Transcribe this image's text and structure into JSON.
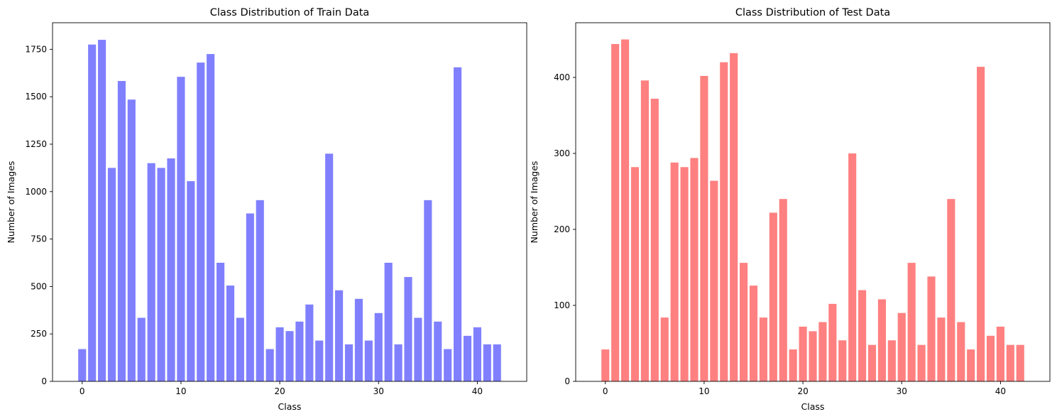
{
  "chart_data": [
    {
      "type": "bar",
      "title": "Class Distribution of Train Data",
      "xlabel": "Class",
      "ylabel": "Number of Images",
      "color": "#8080ff",
      "xlim": [
        -3,
        45
      ],
      "ylim": [
        0,
        1890
      ],
      "xticks": [
        0,
        10,
        20,
        30,
        40
      ],
      "yticks": [
        0,
        250,
        500,
        750,
        1000,
        1250,
        1500,
        1750
      ],
      "grid": false,
      "legend": "none",
      "categories": [
        0,
        1,
        2,
        3,
        4,
        5,
        6,
        7,
        8,
        9,
        10,
        11,
        12,
        13,
        14,
        15,
        16,
        17,
        18,
        19,
        20,
        21,
        22,
        23,
        24,
        25,
        26,
        27,
        28,
        29,
        30,
        31,
        32,
        33,
        34,
        35,
        36,
        37,
        38,
        39,
        40,
        41,
        42
      ],
      "values": [
        170,
        1775,
        1800,
        1125,
        1583,
        1485,
        335,
        1150,
        1125,
        1175,
        1605,
        1055,
        1680,
        1725,
        625,
        505,
        335,
        885,
        955,
        170,
        285,
        265,
        315,
        405,
        215,
        1200,
        480,
        195,
        435,
        215,
        360,
        625,
        195,
        550,
        335,
        955,
        315,
        170,
        1655,
        240,
        285,
        195,
        195
      ]
    },
    {
      "type": "bar",
      "title": "Class Distribution of Test Data",
      "xlabel": "Class",
      "ylabel": "Number of Images",
      "color": "#ff8080",
      "xlim": [
        -3,
        45
      ],
      "ylim": [
        0,
        472
      ],
      "xticks": [
        0,
        10,
        20,
        30,
        40
      ],
      "yticks": [
        0,
        100,
        200,
        300,
        400
      ],
      "grid": false,
      "legend": "none",
      "categories": [
        0,
        1,
        2,
        3,
        4,
        5,
        6,
        7,
        8,
        9,
        10,
        11,
        12,
        13,
        14,
        15,
        16,
        17,
        18,
        19,
        20,
        21,
        22,
        23,
        24,
        25,
        26,
        27,
        28,
        29,
        30,
        31,
        32,
        33,
        34,
        35,
        36,
        37,
        38,
        39,
        40,
        41,
        42
      ],
      "values": [
        42,
        444,
        450,
        282,
        396,
        372,
        84,
        288,
        282,
        294,
        402,
        264,
        420,
        432,
        156,
        126,
        84,
        222,
        240,
        42,
        72,
        66,
        78,
        102,
        54,
        300,
        120,
        48,
        108,
        54,
        90,
        156,
        48,
        138,
        84,
        240,
        78,
        42,
        414,
        60,
        72,
        48,
        48
      ]
    }
  ]
}
